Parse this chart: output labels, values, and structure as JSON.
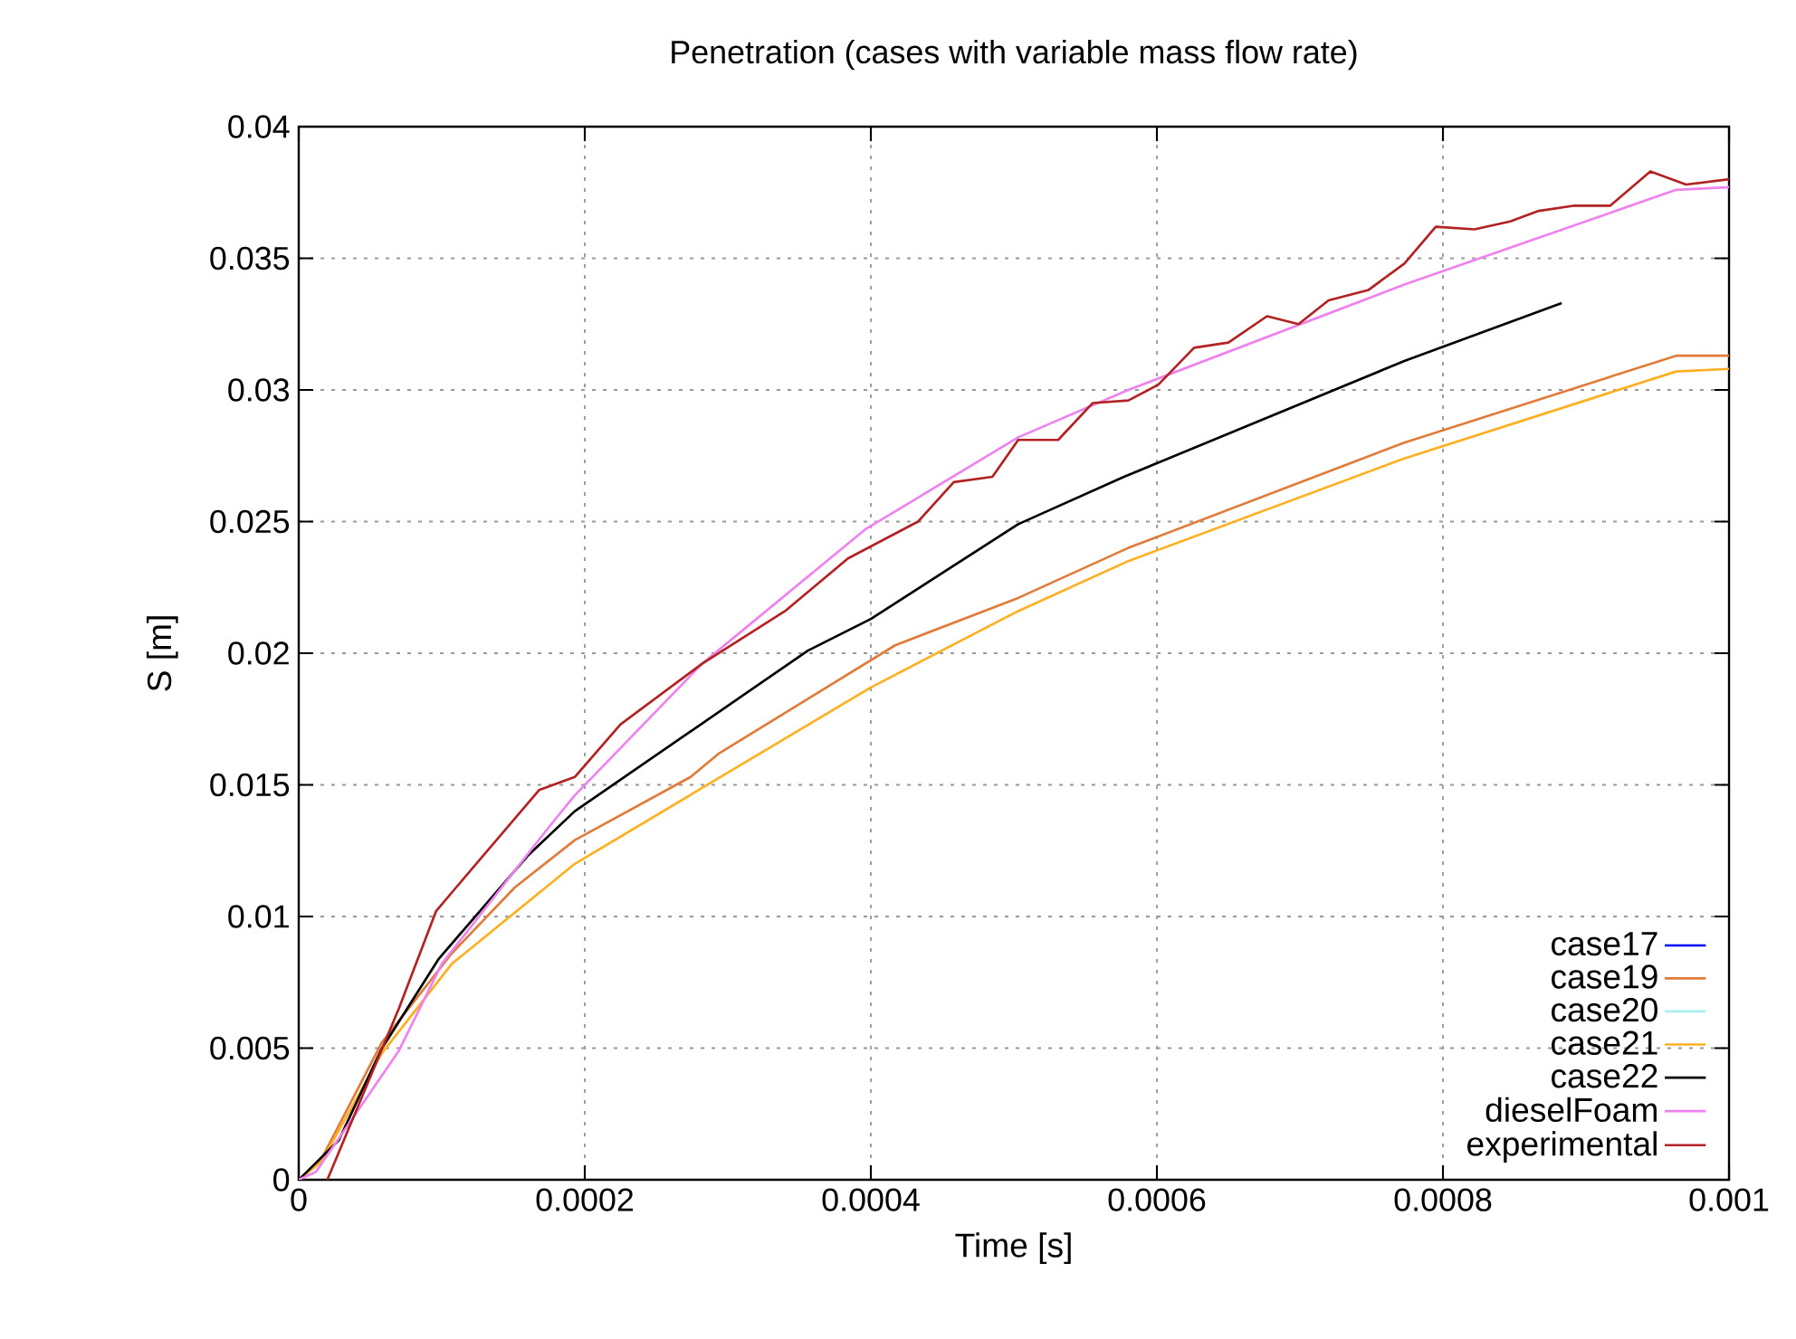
{
  "chart_data": {
    "type": "line",
    "title": "Penetration (cases with variable mass flow rate)",
    "xlabel": "Time [s]",
    "ylabel": "S [m]",
    "xlim": [
      0,
      0.001
    ],
    "ylim": [
      0,
      0.04
    ],
    "xticks": [
      0,
      0.0002,
      0.0004,
      0.0006,
      0.0008,
      0.001
    ],
    "yticks": [
      0,
      0.005,
      0.01,
      0.015,
      0.02,
      0.025,
      0.03,
      0.035,
      0.04
    ],
    "grid": true,
    "legend": "bottom right",
    "line_style": "solid",
    "marker": "none",
    "series": [
      {
        "name": "case17",
        "color": "#0000ff",
        "values": [
          null
        ]
      },
      {
        "name": "case19",
        "color": "#e07b39",
        "x": [
          0,
          1.6e-05,
          5.8e-05,
          0.000107,
          0.000151,
          0.000193,
          0.000274,
          0.000294,
          0.000417,
          0.000503,
          0.00058,
          0.000773,
          0.000963,
          0.001
        ],
        "values": [
          0,
          0.0008,
          0.0052,
          0.0086,
          0.0111,
          0.0129,
          0.0153,
          0.0162,
          0.0203,
          0.0221,
          0.024,
          0.028,
          0.0313,
          0.0313
        ]
      },
      {
        "name": "case20",
        "color": "#aaf0f0",
        "values": [
          null
        ]
      },
      {
        "name": "case21",
        "color": "#ffb020",
        "x": [
          0,
          1.6e-05,
          5.8e-05,
          0.000107,
          0.000193,
          0.0004,
          0.000503,
          0.00058,
          0.000773,
          0.000963,
          0.001
        ],
        "values": [
          0,
          0.0007,
          0.0048,
          0.0082,
          0.012,
          0.0187,
          0.0216,
          0.0235,
          0.0274,
          0.0307,
          0.0308
        ]
      },
      {
        "name": "case22",
        "color": "#000000",
        "x": [
          0,
          2.8e-05,
          5.77e-05,
          9.8e-05,
          0.00016,
          0.000193,
          0.000356,
          0.0004,
          0.000503,
          0.000577,
          0.000773,
          0.000883
        ],
        "values": [
          0,
          0.0015,
          0.00495,
          0.0084,
          0.0123,
          0.014,
          0.0201,
          0.0213,
          0.0249,
          0.0267,
          0.0311,
          0.0333
        ]
      },
      {
        "name": "dieselFoam",
        "color": "#ee82ee",
        "x": [
          0,
          1.2e-05,
          7e-05,
          0.0001,
          0.000175,
          0.000193,
          0.000282,
          0.000396,
          0.000503,
          0.00058,
          0.000773,
          0.000963,
          0.001
        ],
        "values": [
          0,
          0.0003,
          0.0049,
          0.0082,
          0.0134,
          0.0146,
          0.0196,
          0.0247,
          0.0282,
          0.03,
          0.034,
          0.0376,
          0.0377
        ]
      },
      {
        "name": "experimental",
        "color": "#b22222",
        "x": [
          2e-05,
          7e-05,
          9.6e-05,
          0.00011,
          0.000168,
          0.000193,
          0.000225,
          0.000282,
          0.00034,
          0.000384,
          0.000433,
          0.000458,
          0.000485,
          0.000503,
          0.000531,
          0.000555,
          0.00058,
          0.000601,
          0.000626,
          0.00065,
          0.000677,
          0.000699,
          0.00072,
          0.000748,
          0.000773,
          0.000795,
          0.000822,
          0.000847,
          0.000867,
          0.000892,
          0.000917,
          0.000945,
          0.00097,
          0.001
        ],
        "values": [
          0,
          0.0065,
          0.0102,
          0.0111,
          0.0148,
          0.0153,
          0.0173,
          0.0196,
          0.0216,
          0.0236,
          0.025,
          0.0265,
          0.0267,
          0.0281,
          0.0281,
          0.0295,
          0.0296,
          0.0302,
          0.0316,
          0.0318,
          0.0328,
          0.0325,
          0.0334,
          0.0338,
          0.0348,
          0.0362,
          0.0361,
          0.0364,
          0.0368,
          0.037,
          0.037,
          0.0383,
          0.0378,
          0.038
        ]
      }
    ]
  }
}
